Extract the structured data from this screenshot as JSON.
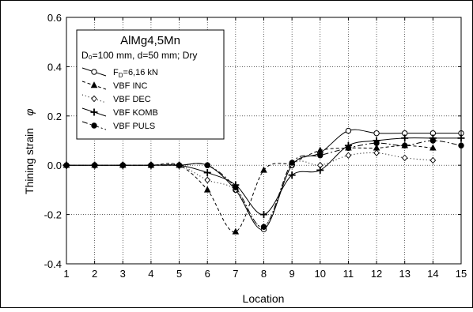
{
  "chart_data": {
    "type": "line",
    "xlabel": "Location",
    "ylabel": "Thining strain",
    "ylabel_symbol": "φ",
    "xlim": [
      1,
      15
    ],
    "ylim": [
      -0.4,
      0.6
    ],
    "x_ticks": [
      1,
      2,
      3,
      4,
      5,
      6,
      7,
      8,
      9,
      10,
      11,
      12,
      13,
      14,
      15
    ],
    "y_ticks": [
      -0.4,
      -0.2,
      0.0,
      0.2,
      0.4,
      0.6
    ],
    "y_tick_labels": [
      "-0.4",
      "-0.2",
      "0.0",
      "0.2",
      "0.4",
      "0.6"
    ],
    "grid": true,
    "legend": {
      "title": "AlMg4,5Mn",
      "subtitle": "D₀=100 mm, d=50 mm; Dry",
      "placement": "top-left"
    },
    "series": [
      {
        "name": "F_D=6,16 kN",
        "name_main": "F",
        "name_sub": "D",
        "name_rest": "=6,16 kN",
        "marker": "circle-open",
        "dash": "",
        "x": [
          1,
          2,
          3,
          4,
          5,
          6,
          7,
          8,
          9,
          10,
          11,
          12,
          13,
          14,
          15
        ],
        "values": [
          0.0,
          0.0,
          0.0,
          0.0,
          0.0,
          0.0,
          -0.1,
          -0.26,
          0.0,
          0.05,
          0.14,
          0.13,
          0.13,
          0.13,
          0.13
        ]
      },
      {
        "name": "VBF INC",
        "marker": "triangle-filled",
        "dash": "4 3",
        "x": [
          1,
          2,
          3,
          4,
          5,
          6,
          7,
          8,
          9,
          10,
          11,
          12,
          13,
          14
        ],
        "values": [
          0.0,
          0.0,
          0.0,
          0.0,
          0.0,
          -0.1,
          -0.27,
          -0.02,
          0.01,
          0.06,
          0.07,
          0.07,
          0.08,
          0.07
        ]
      },
      {
        "name": "VBF DEC",
        "marker": "diamond-open",
        "dash": "1 3",
        "x": [
          1,
          2,
          3,
          4,
          5,
          6,
          7,
          8,
          9,
          10,
          11,
          12,
          13,
          14
        ],
        "values": [
          0.0,
          0.0,
          0.0,
          0.0,
          0.0,
          -0.06,
          -0.1,
          -0.25,
          0.0,
          0.0,
          0.04,
          0.05,
          0.03,
          0.02
        ]
      },
      {
        "name": "VBF KOMB",
        "marker": "plus",
        "dash": "",
        "x": [
          1,
          2,
          3,
          4,
          5,
          6,
          7,
          8,
          9,
          10,
          11,
          12,
          13,
          14,
          15
        ],
        "values": [
          0.0,
          0.0,
          0.0,
          0.0,
          0.0,
          -0.03,
          -0.08,
          -0.2,
          -0.04,
          -0.02,
          0.08,
          0.1,
          0.11,
          0.11,
          0.11
        ]
      },
      {
        "name": "VBF PULS",
        "marker": "circle-filled",
        "dash": "7 3 2 3",
        "x": [
          1,
          2,
          3,
          4,
          5,
          6,
          7,
          8,
          9,
          10,
          11,
          12,
          13,
          14,
          15
        ],
        "values": [
          0.0,
          0.0,
          0.0,
          0.0,
          0.0,
          0.0,
          -0.09,
          -0.25,
          0.01,
          0.04,
          0.07,
          0.09,
          0.08,
          0.1,
          0.08
        ]
      }
    ]
  }
}
